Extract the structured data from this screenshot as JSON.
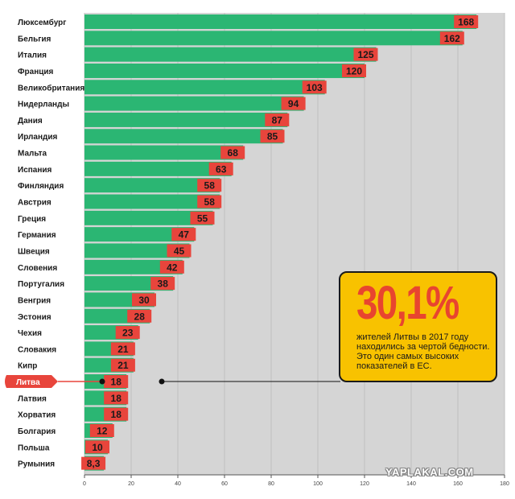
{
  "chart_data": {
    "type": "bar",
    "orientation": "horizontal",
    "categories": [
      "Люксембург",
      "Бельгия",
      "Италия",
      "Франция",
      "Великобритания",
      "Нидерланды",
      "Дания",
      "Ирландия",
      "Мальта",
      "Испания",
      "Финляндия",
      "Австрия",
      "Греция",
      "Германия",
      "Швеция",
      "Словения",
      "Португалия",
      "Венгрия",
      "Эстония",
      "Чехия",
      "Словакия",
      "Кипр",
      "Литва",
      "Латвия",
      "Хорватия",
      "Болгария",
      "Польша",
      "Румыния"
    ],
    "values": [
      168,
      162,
      125,
      120,
      103,
      94,
      87,
      85,
      68,
      63,
      58,
      58,
      55,
      47,
      45,
      42,
      38,
      30,
      28,
      23,
      21,
      21,
      18,
      18,
      18,
      12,
      10,
      8.3
    ],
    "value_labels": [
      "168",
      "162",
      "125",
      "120",
      "103",
      "94",
      "87",
      "85",
      "68",
      "63",
      "58",
      "58",
      "55",
      "47",
      "45",
      "42",
      "38",
      "30",
      "28",
      "23",
      "21",
      "21",
      "18",
      "18",
      "18",
      "12",
      "10",
      "8,3"
    ],
    "highlight_category": "Литва",
    "xlim": [
      0,
      180
    ],
    "x_ticks": [
      "0",
      "20",
      "40",
      "60",
      "80",
      "100",
      "120",
      "140",
      "160",
      "180"
    ],
    "title": "",
    "xlabel": "",
    "ylabel": "",
    "grid": true,
    "colors": {
      "bar": "#2bb673",
      "label_box": "#e8453c",
      "highlight": "#e8453c",
      "plot_bg": "#d5d5d5",
      "grid": "#c0c0c0"
    }
  },
  "callout": {
    "headline": "30,1%",
    "text": "жителей Литвы в 2017 году находились за чертой бедности. Это один самых высоких показателей в ЕС."
  },
  "watermark": "YAPLAKAL.COM"
}
